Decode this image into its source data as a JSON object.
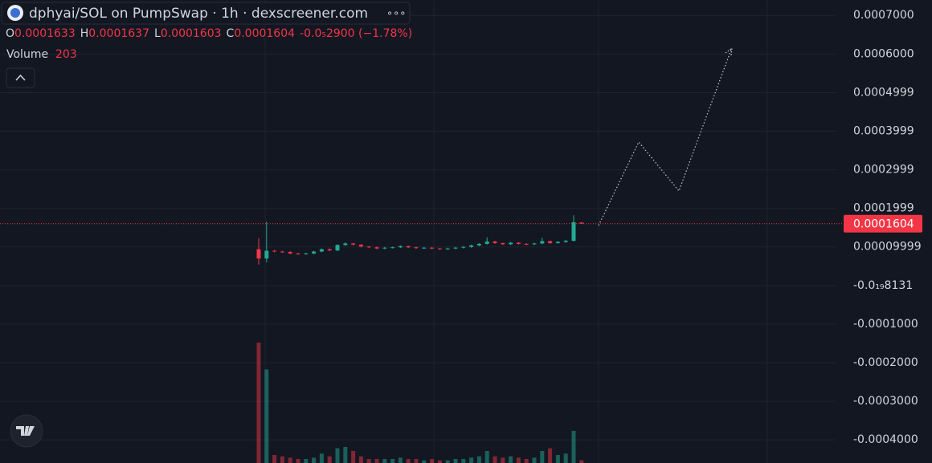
{
  "chart_data": {
    "type": "candlestick",
    "title": "dphyai/SOL on PumpSwap · 1h · dexscreener.com",
    "ohlc_labels": [
      "O",
      "H",
      "L",
      "C"
    ],
    "change": "-0.0₅2900 (−1.78%)",
    "volume_label": "Volume",
    "up_color": "#22ab94",
    "down_color": "#f23645",
    "open": [
      9.4e-05,
      7e-05,
      9e-05,
      8.8e-05,
      8.7e-05,
      8.3e-05,
      8.2e-05,
      8.3e-05,
      8.8e-05,
      9.4e-05,
      9.1e-05,
      0.000105,
      0.000109,
      0.000106,
      0.000101,
      9.9e-05,
      9.6e-05,
      9.8e-05,
      9.9e-05,
      0.000102,
      9.9e-05,
      9.7e-05,
      9.8e-05,
      9.6e-05,
      9.5e-05,
      9.6e-05,
      9.8e-05,
      0.0001,
      0.000104,
      0.000108,
      0.000114,
      0.00011,
      0.000107,
      0.000111,
      0.000108,
      0.000107,
      0.000109,
      0.000115,
      0.00011,
      0.000113,
      0.000116,
      0.0001633
    ],
    "high": [
      0.000123,
      0.000165,
      9.2e-05,
      9e-05,
      8.9e-05,
      8.5e-05,
      8.5e-05,
      9e-05,
      9.6e-05,
      9.6e-05,
      0.000107,
      0.000112,
      0.00011,
      0.000107,
      0.000102,
      0.000101,
      0.0001,
      0.000101,
      0.000104,
      0.000103,
      0.000101,
      0.0001,
      0.0001,
      9.7e-05,
      9.8e-05,
      0.0001,
      0.000102,
      0.000106,
      0.00011,
      0.000125,
      0.000116,
      0.000111,
      0.000113,
      0.000112,
      0.00011,
      0.000111,
      0.000124,
      0.000116,
      0.000115,
      0.000118,
      0.000182,
      0.0001637
    ],
    "low": [
      5.4e-05,
      6e-05,
      8.6e-05,
      8.5e-05,
      8.1e-05,
      8e-05,
      8e-05,
      8.1e-05,
      8.6e-05,
      8.9e-05,
      8.9e-05,
      0.000103,
      0.000104,
      9.9e-05,
      9.7e-05,
      9.4e-05,
      9.4e-05,
      9.6e-05,
      9.7e-05,
      9.7e-05,
      9.5e-05,
      9.5e-05,
      9.4e-05,
      9.3e-05,
      9.3e-05,
      9.4e-05,
      9.6e-05,
      9.8e-05,
      0.000102,
      0.000106,
      0.000108,
      0.000105,
      0.000105,
      0.000106,
      0.000105,
      0.000105,
      0.000107,
      0.000108,
      0.000108,
      0.000111,
      0.000114,
      0.0001603
    ],
    "close": [
      7e-05,
      9e-05,
      8.8e-05,
      8.7e-05,
      8.3e-05,
      8.2e-05,
      8.3e-05,
      8.8e-05,
      9.4e-05,
      9.1e-05,
      0.000105,
      0.000109,
      0.000106,
      0.000101,
      9.9e-05,
      9.6e-05,
      9.8e-05,
      9.9e-05,
      0.000102,
      9.9e-05,
      9.7e-05,
      9.8e-05,
      9.6e-05,
      9.5e-05,
      9.6e-05,
      9.8e-05,
      0.0001,
      0.000104,
      0.000108,
      0.000114,
      0.00011,
      0.000107,
      0.000111,
      0.000108,
      0.000107,
      0.000109,
      0.000115,
      0.00011,
      0.000113,
      0.000116,
      0.000164,
      0.0001604
    ],
    "volume": [
      9000,
      7000,
      600,
      500,
      400,
      300,
      300,
      400,
      700,
      500,
      1100,
      1200,
      900,
      500,
      300,
      300,
      300,
      300,
      400,
      300,
      300,
      200,
      300,
      200,
      200,
      300,
      300,
      400,
      500,
      900,
      500,
      400,
      500,
      400,
      300,
      400,
      900,
      1100,
      600,
      700,
      2400,
      203
    ],
    "ylim": [
      -0.00046,
      0.00074
    ],
    "yticks": [
      {
        "value": 0.0007,
        "label": "0.0007000"
      },
      {
        "value": 0.0006,
        "label": "0.0006000"
      },
      {
        "value": 0.0004999,
        "label": "0.0004999"
      },
      {
        "value": 0.0003999,
        "label": "0.0003999"
      },
      {
        "value": 0.0002999,
        "label": "0.0002999"
      },
      {
        "value": 0.0001999,
        "label": "0.0001999"
      },
      {
        "value": 9.999e-05,
        "label": "0.00009999"
      },
      {
        "value": -8.131e-20,
        "label": "-0.0₁₉8131"
      },
      {
        "value": -0.0001,
        "label": "-0.0001000"
      },
      {
        "value": -0.0002,
        "label": "-0.0002000"
      },
      {
        "value": -0.0003,
        "label": "-0.0003000"
      },
      {
        "value": -0.0004,
        "label": "-0.0004000"
      }
    ],
    "grid": true
  }
}
